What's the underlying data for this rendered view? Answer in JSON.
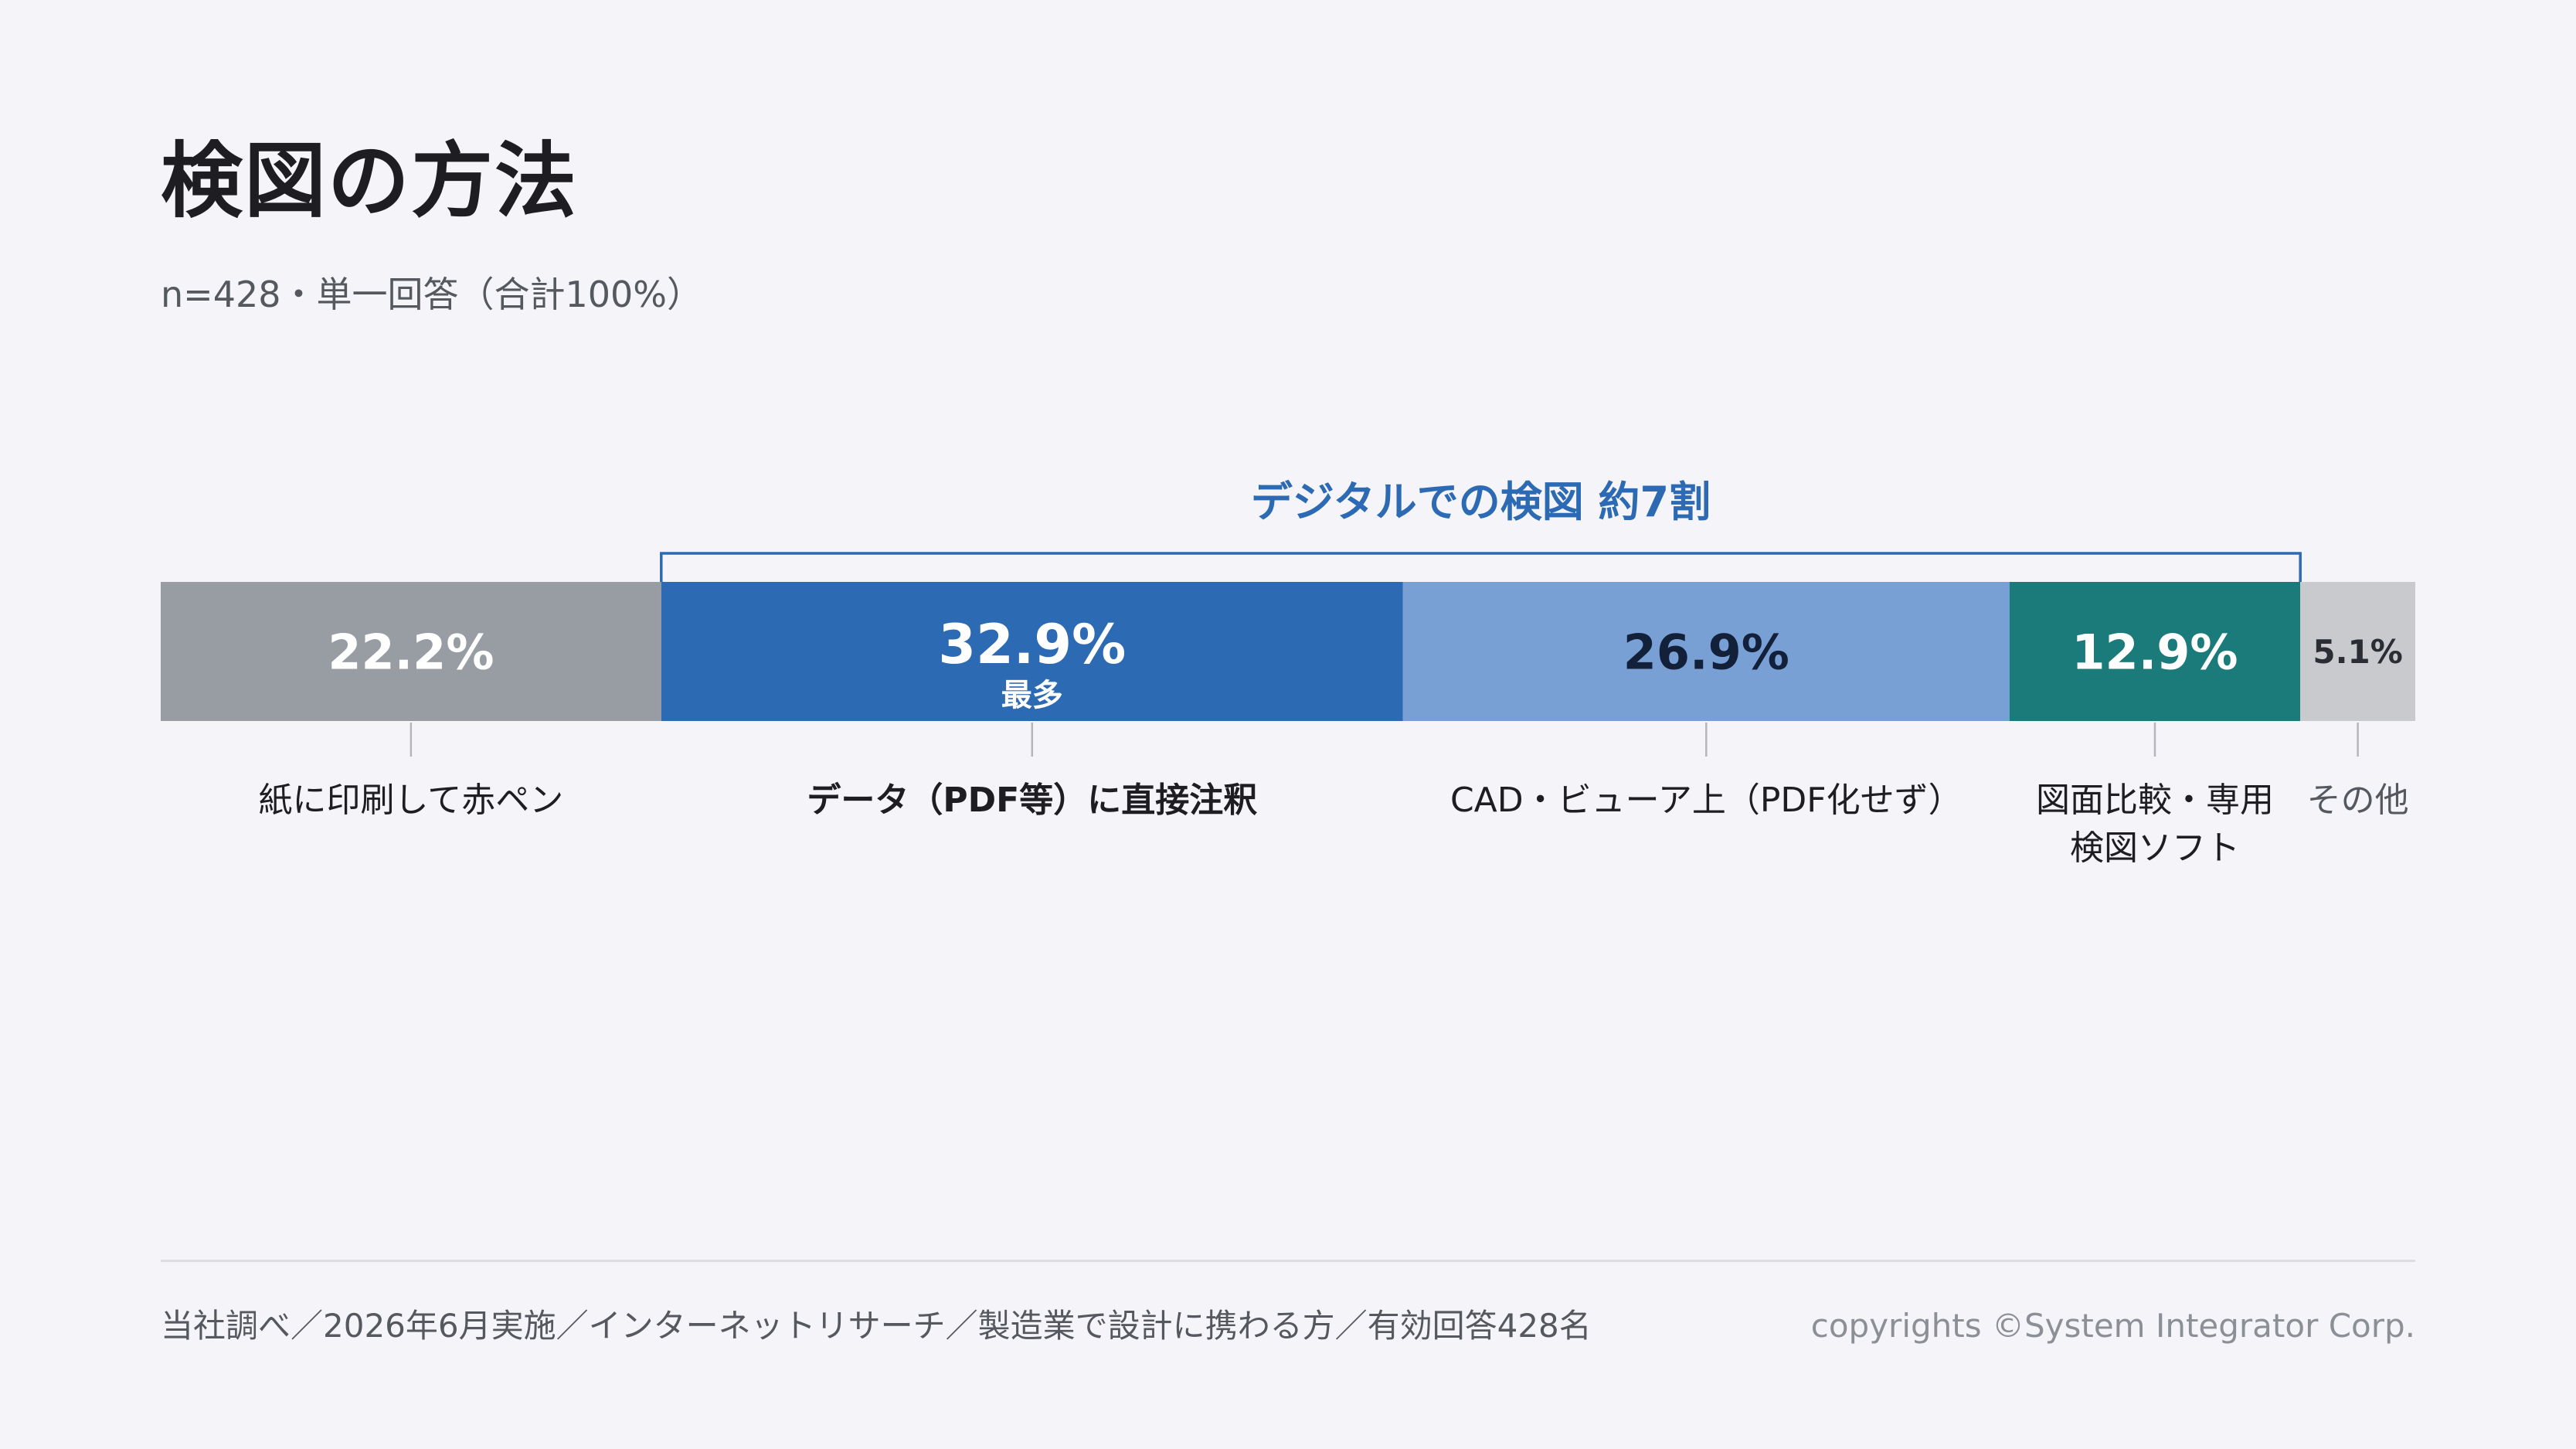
{
  "header": {
    "title": "検図の方法",
    "subtitle": "n=428・単一回答（合計100%）"
  },
  "chart_data": {
    "type": "bar",
    "stacked": true,
    "orientation": "horizontal",
    "total": 100,
    "categories": [
      "紙に印刷して赤ペン",
      "データ（PDF等）に直接注釈",
      "CAD・ビューア上（PDF化せず）",
      "図面比較・専用 検図ソフト",
      "その他"
    ],
    "values": [
      22.2,
      32.9,
      26.9,
      12.9,
      5.1
    ],
    "value_labels": [
      "22.2%",
      "32.9%",
      "26.9%",
      "12.9%",
      "5.1%"
    ],
    "colors": [
      "#989ca3",
      "#2d6ab4",
      "#79a0d5",
      "#1a7b7a",
      "#c8cace"
    ],
    "value_text_colors": [
      "#ffffff",
      "#ffffff",
      "#12203a",
      "#ffffff",
      "#2a2d33"
    ],
    "highlight_index": 1,
    "highlight_note": "最多",
    "label_lines": [
      [
        "紙に印刷して赤ペン"
      ],
      [
        "データ（PDF等）に直接注釈"
      ],
      [
        "CAD・ビューア上（PDF化せず）"
      ],
      [
        "図面比較・専用",
        "検図ソフト"
      ],
      [
        "その他"
      ]
    ],
    "bracket": {
      "label": "デジタルでの検図 約7割",
      "from_index": 1,
      "to_index": 3,
      "color": "#2d6ab4"
    }
  },
  "footer": {
    "note": "当社調べ／2026年6月実施／インターネットリサーチ／製造業で設計に携わる方／有効回答428名",
    "copyright": "copyrights ©System Integrator Corp."
  }
}
